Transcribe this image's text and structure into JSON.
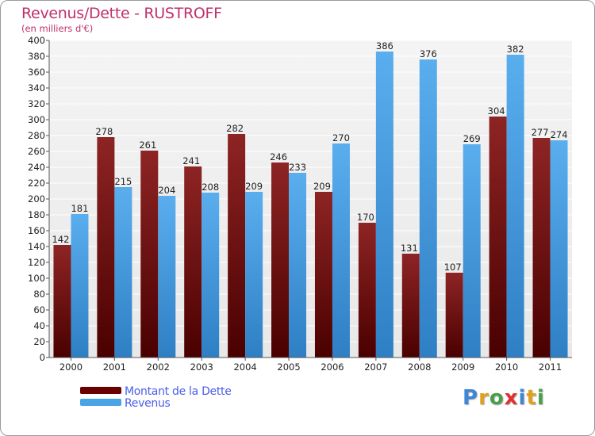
{
  "title": "Revenus/Dette - RUSTROFF",
  "subtitle": "(en milliers d'€)",
  "colors": {
    "dette": "#7a0a0a",
    "revenus": "#4aa3e6",
    "title": "#c0306a",
    "legend_text": "#4a5ee8"
  },
  "legend": {
    "items": [
      {
        "label": "Montant de la Dette",
        "color": "#6a0000"
      },
      {
        "label": "Revenus",
        "color": "#4aa3e6"
      }
    ]
  },
  "logo": {
    "letters": [
      "P",
      "r",
      "o",
      "x",
      "i",
      "t",
      "i"
    ],
    "colors": [
      "#3f86d6",
      "#e0a020",
      "#4aa04a",
      "#e03030",
      "#3f86d6",
      "#e0a020",
      "#4aa04a"
    ]
  },
  "chart_data": {
    "type": "bar",
    "title": "Revenus/Dette - RUSTROFF",
    "ylabel": "(en milliers d'€)",
    "xlabel": "",
    "categories": [
      "2000",
      "2001",
      "2002",
      "2003",
      "2004",
      "2005",
      "2006",
      "2007",
      "2008",
      "2009",
      "2010",
      "2011"
    ],
    "series": [
      {
        "name": "Montant de la Dette",
        "values": [
          142,
          278,
          261,
          241,
          282,
          246,
          209,
          170,
          131,
          107,
          304,
          277
        ]
      },
      {
        "name": "Revenus",
        "values": [
          181,
          215,
          204,
          208,
          209,
          233,
          270,
          386,
          376,
          269,
          382,
          274
        ]
      }
    ],
    "ylim": [
      0,
      400
    ],
    "ytick_step": 20,
    "grid": true,
    "legend_position": "bottom-left"
  }
}
